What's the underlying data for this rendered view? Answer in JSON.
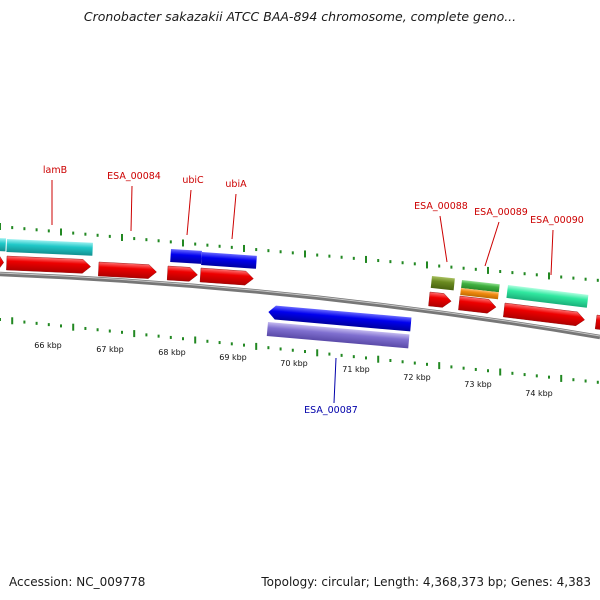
{
  "title": "Cronobacter sakazakii ATCC BAA-894 chromosome, complete geno...",
  "footer": {
    "accession": "Accession: NC_009778",
    "stats": "Topology: circular; Length: 4,368,373 bp; Genes: 4,383"
  },
  "colors": {
    "forward_label": "#cc0000",
    "reverse_label": "#0000aa",
    "backbone": "#8a8a8a",
    "tick": "#228822",
    "cds": "#ee0000",
    "gene_cyan": "#20c8c8",
    "gene_blue": "#0000ee",
    "gene_purple": "#8070d0",
    "gene_olive": "#6a8a20",
    "gene_green": "#40b040",
    "gene_orange": "#f08a10",
    "gene_mint": "#30e8a0"
  },
  "ruler": {
    "labels": [
      "66 kbp",
      "67 kbp",
      "68 kbp",
      "69 kbp",
      "70 kbp",
      "71 kbp",
      "72 kbp",
      "73 kbp",
      "74 kbp"
    ]
  },
  "gene_labels_forward": [
    "lamB",
    "ESA_00084",
    "ubiC",
    "ubiA",
    "ESA_00088",
    "ESA_00089",
    "ESA_00090"
  ],
  "gene_labels_reverse": [
    "ESA_00087"
  ]
}
